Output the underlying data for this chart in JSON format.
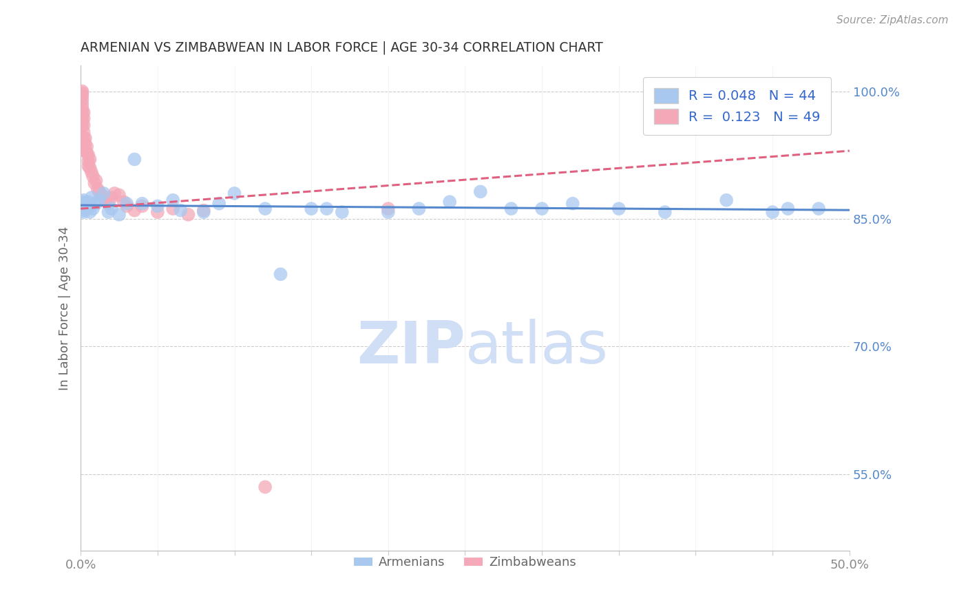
{
  "title": "ARMENIAN VS ZIMBABWEAN IN LABOR FORCE | AGE 30-34 CORRELATION CHART",
  "source_text": "Source: ZipAtlas.com",
  "ylabel": "In Labor Force | Age 30-34",
  "xlim": [
    0.0,
    0.5
  ],
  "ylim": [
    0.46,
    1.03
  ],
  "xticks": [
    0.0,
    0.05,
    0.1,
    0.15,
    0.2,
    0.25,
    0.3,
    0.35,
    0.4,
    0.45,
    0.5
  ],
  "xticklabels": [
    "0.0%",
    "",
    "",
    "",
    "",
    "",
    "",
    "",
    "",
    "",
    "50.0%"
  ],
  "right_yticks": [
    0.55,
    0.7,
    0.85,
    1.0
  ],
  "right_yticklabels": [
    "55.0%",
    "70.0%",
    "85.0%",
    "100.0%"
  ],
  "grid_yticks": [
    0.55,
    0.7,
    0.85,
    1.0
  ],
  "background_color": "#ffffff",
  "title_color": "#333333",
  "axis_color": "#cccccc",
  "label_color": "#666666",
  "tick_color": "#666666",
  "right_tick_color": "#5588cc",
  "bottom_tick_color": "#888888",
  "legend_label_armenians": "Armenians",
  "legend_label_zimbabweans": "Zimbabweans",
  "R_armenian": 0.048,
  "N_armenian": 44,
  "R_zimbabwean": 0.123,
  "N_zimbabwean": 49,
  "armenian_color": "#a8c8f0",
  "zimbabwean_color": "#f4a8b8",
  "armenian_line_color": "#5588cc",
  "zimbabwean_line_color": "#e06080",
  "legend_text_color": "#3366cc",
  "legend_N_color": "#3366cc",
  "watermark_zip": "ZIP",
  "watermark_atlas": "atlas",
  "watermark_color": "#d0dff5",
  "armenian_x": [
    0.001,
    0.001,
    0.001,
    0.002,
    0.002,
    0.003,
    0.004,
    0.005,
    0.006,
    0.007,
    0.008,
    0.01,
    0.012,
    0.015,
    0.018,
    0.02,
    0.025,
    0.03,
    0.035,
    0.04,
    0.05,
    0.06,
    0.065,
    0.08,
    0.09,
    0.1,
    0.12,
    0.13,
    0.15,
    0.16,
    0.17,
    0.2,
    0.22,
    0.24,
    0.26,
    0.28,
    0.3,
    0.32,
    0.35,
    0.38,
    0.42,
    0.45,
    0.46,
    0.48
  ],
  "armenian_y": [
    0.87,
    0.865,
    0.86,
    0.872,
    0.858,
    0.868,
    0.862,
    0.87,
    0.858,
    0.875,
    0.862,
    0.868,
    0.872,
    0.88,
    0.858,
    0.862,
    0.855,
    0.868,
    0.92,
    0.868,
    0.865,
    0.872,
    0.86,
    0.858,
    0.868,
    0.88,
    0.862,
    0.785,
    0.862,
    0.862,
    0.858,
    0.858,
    0.862,
    0.87,
    0.882,
    0.862,
    0.862,
    0.868,
    0.862,
    0.858,
    0.872,
    0.858,
    0.862,
    0.862
  ],
  "zimbabwean_x": [
    0.001,
    0.001,
    0.001,
    0.001,
    0.001,
    0.001,
    0.001,
    0.001,
    0.001,
    0.001,
    0.002,
    0.002,
    0.002,
    0.002,
    0.002,
    0.002,
    0.003,
    0.003,
    0.003,
    0.004,
    0.004,
    0.005,
    0.005,
    0.005,
    0.006,
    0.006,
    0.007,
    0.008,
    0.009,
    0.01,
    0.011,
    0.012,
    0.014,
    0.015,
    0.016,
    0.018,
    0.02,
    0.022,
    0.025,
    0.028,
    0.03,
    0.035,
    0.04,
    0.05,
    0.06,
    0.07,
    0.08,
    0.12,
    0.2
  ],
  "zimbabwean_y": [
    1.0,
    0.998,
    0.995,
    0.99,
    0.985,
    0.98,
    0.975,
    0.97,
    0.965,
    0.96,
    0.975,
    0.968,
    0.96,
    0.952,
    0.945,
    0.938,
    0.945,
    0.938,
    0.93,
    0.935,
    0.928,
    0.925,
    0.918,
    0.912,
    0.92,
    0.91,
    0.905,
    0.9,
    0.892,
    0.895,
    0.885,
    0.882,
    0.878,
    0.875,
    0.872,
    0.868,
    0.875,
    0.88,
    0.878,
    0.87,
    0.865,
    0.86,
    0.865,
    0.858,
    0.862,
    0.855,
    0.86,
    0.535,
    0.862
  ]
}
